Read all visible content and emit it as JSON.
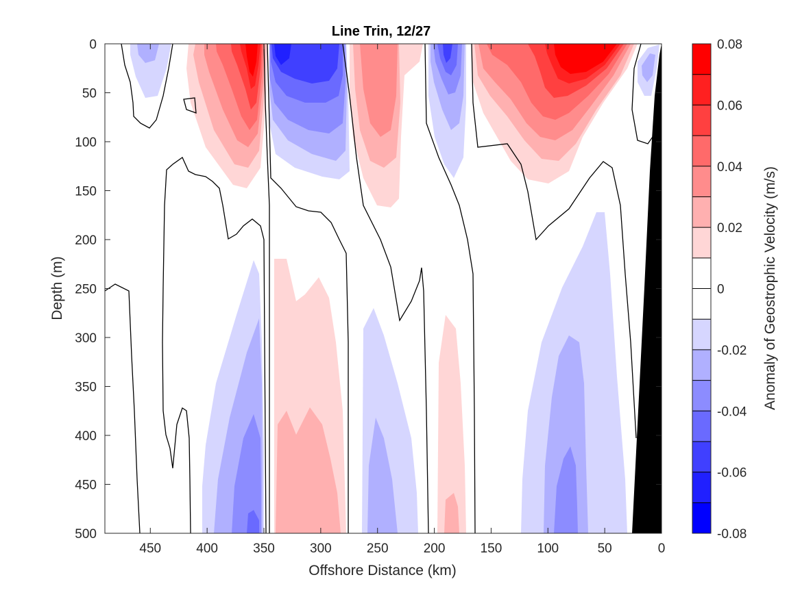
{
  "chart_data": {
    "type": "filled-contour",
    "title": "Line Trin, 12/27",
    "xlabel": "Offshore Distance (km)",
    "ylabel": "Depth (m)",
    "xlim": [
      490,
      0
    ],
    "ylim": [
      0,
      500
    ],
    "x_reversed": true,
    "y_reversed": true,
    "xticks": [
      450,
      400,
      350,
      300,
      250,
      200,
      150,
      100,
      50,
      0
    ],
    "yticks": [
      0,
      50,
      100,
      150,
      200,
      250,
      300,
      350,
      400,
      450,
      500
    ],
    "colorbar": {
      "label": "Anomaly of Geostrophic Velocity (m/s)",
      "levels": [
        -0.08,
        -0.07,
        -0.06,
        -0.05,
        -0.04,
        -0.03,
        -0.02,
        -0.01,
        0,
        0.01,
        0.02,
        0.03,
        0.04,
        0.05,
        0.06,
        0.07,
        0.08
      ],
      "ticks": [
        0.08,
        0.06,
        0.04,
        0.02,
        0,
        -0.02,
        -0.04,
        -0.06,
        -0.08
      ],
      "tick_labels": [
        "0.08",
        "0.06",
        "0.04",
        "0.02",
        "0",
        "-0.02",
        "-0.04",
        "-0.06",
        "-0.08"
      ],
      "colors_low_to_high": [
        "#0000ff",
        "#2020ff",
        "#4040ff",
        "#6a6aff",
        "#8c8cff",
        "#b0b0ff",
        "#d6d6ff",
        "#ffffff",
        "#ffffff",
        "#ffd6d6",
        "#ffb0b0",
        "#ff8c8c",
        "#ff6a6a",
        "#ff4040",
        "#ff2020",
        "#ff0000"
      ]
    },
    "features": [
      {
        "sign": "positive",
        "x_range_km": [
          395,
          345
        ],
        "depth_range_m": [
          0,
          150
        ],
        "peak": 0.08,
        "peak_depth_m": 10
      },
      {
        "sign": "negative",
        "x_range_km": [
          345,
          270
        ],
        "depth_range_m": [
          0,
          140
        ],
        "peak": -0.07,
        "peak_depth_m": 10
      },
      {
        "sign": "positive",
        "x_range_km": [
          265,
          210
        ],
        "depth_range_m": [
          0,
          165
        ],
        "peak": 0.04
      },
      {
        "sign": "negative",
        "x_range_km": [
          200,
          165
        ],
        "depth_range_m": [
          0,
          135
        ],
        "peak": -0.05
      },
      {
        "sign": "positive",
        "x_range_km": [
          165,
          30
        ],
        "depth_range_m": [
          0,
          140
        ],
        "peak": 0.08,
        "peak_depth_m": 15
      },
      {
        "sign": "negative",
        "x_range_km": [
          475,
          430
        ],
        "depth_range_m": [
          0,
          50
        ],
        "peak": -0.02
      },
      {
        "sign": "negative",
        "x_range_km": [
          25,
          10
        ],
        "depth_range_m": [
          0,
          50
        ],
        "peak": -0.02
      },
      {
        "sign": "negative",
        "x_range_km": [
          405,
          345
        ],
        "depth_range_m": [
          220,
          500
        ],
        "peak": -0.05
      },
      {
        "sign": "positive",
        "x_range_km": [
          345,
          275
        ],
        "depth_range_m": [
          220,
          500
        ],
        "peak": 0.03
      },
      {
        "sign": "negative",
        "x_range_km": [
          270,
          215
        ],
        "depth_range_m": [
          270,
          500
        ],
        "peak": -0.03
      },
      {
        "sign": "positive",
        "x_range_km": [
          200,
          170
        ],
        "depth_range_m": [
          275,
          500
        ],
        "peak": 0.03
      },
      {
        "sign": "negative",
        "x_range_km": [
          125,
          28
        ],
        "depth_range_m": [
          165,
          500
        ],
        "peak": -0.04
      }
    ],
    "bathymetry": {
      "color": "#000000",
      "shore_km": 0,
      "bottom_at_500m_km": 28
    }
  }
}
